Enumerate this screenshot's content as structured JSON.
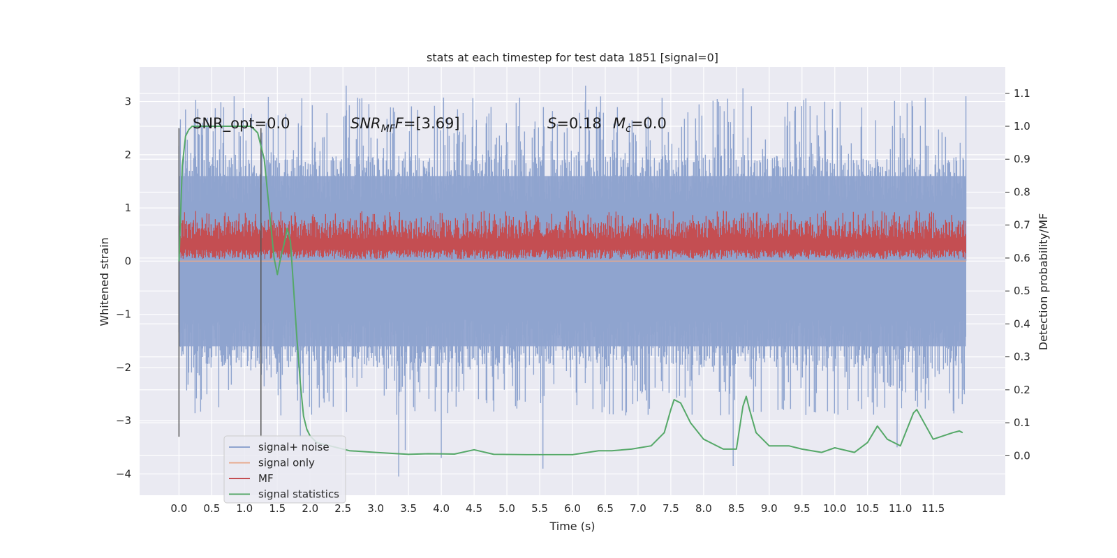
{
  "chart_data": {
    "type": "line",
    "title": "stats at each timestep for test data 1851 [signal=0]",
    "xlabel": "Time (s)",
    "ylabel": "Whitened strain",
    "y2label": "Detection probability/MF",
    "xlim": [
      -0.6,
      12.6
    ],
    "ylim": [
      -4.4,
      3.65
    ],
    "y2lim": [
      -0.12,
      1.18
    ],
    "x_ticks": [
      "0.0",
      "0.5",
      "1.0",
      "1.5",
      "2.0",
      "2.5",
      "3.0",
      "3.5",
      "4.0",
      "4.5",
      "5.0",
      "5.5",
      "6.0",
      "6.5",
      "7.0",
      "7.5",
      "8.0",
      "8.5",
      "9.0",
      "9.5",
      "10.0",
      "10.5",
      "11.0",
      "11.5"
    ],
    "y_ticks": [
      "3",
      "2",
      "1",
      "0",
      "−1",
      "−2",
      "−3",
      "−4"
    ],
    "y2_ticks": [
      "1.1",
      "1.0",
      "0.9",
      "0.8",
      "0.7",
      "0.6",
      "0.5",
      "0.4",
      "0.3",
      "0.2",
      "0.1",
      "0.0"
    ],
    "grid": true,
    "legend_position": "lower-left",
    "legend": [
      {
        "label": "signal+ noise",
        "color": "#8fa4cf"
      },
      {
        "label": "signal only",
        "color": "#e8a98d"
      },
      {
        "label": "MF",
        "color": "#c44e52"
      },
      {
        "label": "signal statistics",
        "color": "#55a868"
      }
    ],
    "annotations": {
      "snr_opt": "SNR_opt=0.0",
      "snr_mf_sym": "SNR",
      "snr_mf_sub": "MF",
      "snr_mf_value": "=[3.69]",
      "s_sym": "S",
      "s_value": "=0.18",
      "mc_sym": "M",
      "mc_sub": "c",
      "mc_value": "=0.0"
    },
    "vertical_lines_x": [
      0.0,
      1.25
    ],
    "signal_noise": {
      "x_range": [
        0.0,
        12.0
      ],
      "band": [
        -1.6,
        1.6
      ],
      "peak_range": [
        -4.05,
        3.3
      ]
    },
    "signal_only": {
      "x_range": [
        0.0,
        12.0
      ],
      "value": 0.0
    },
    "mf": {
      "x_range": [
        0.0,
        12.0
      ],
      "band": [
        0.02,
        0.95
      ]
    },
    "signal_statistics": {
      "axis": "right",
      "x": [
        0.0,
        0.05,
        0.1,
        0.15,
        0.2,
        0.3,
        0.5,
        0.8,
        1.0,
        1.1,
        1.2,
        1.3,
        1.4,
        1.45,
        1.5,
        1.55,
        1.6,
        1.65,
        1.7,
        1.75,
        1.8,
        1.85,
        1.9,
        1.95,
        2.0,
        2.1,
        2.2,
        2.4,
        2.6,
        3.0,
        3.5,
        3.8,
        4.2,
        4.5,
        4.8,
        5.3,
        6.0,
        6.4,
        6.6,
        6.9,
        7.2,
        7.4,
        7.5,
        7.55,
        7.65,
        7.8,
        8.0,
        8.3,
        8.5,
        8.6,
        8.65,
        8.7,
        8.8,
        9.0,
        9.3,
        9.5,
        9.8,
        10.0,
        10.3,
        10.5,
        10.65,
        10.8,
        11.0,
        11.2,
        11.25,
        11.5,
        11.8,
        11.9,
        11.95
      ],
      "y": [
        0.59,
        0.88,
        0.97,
        0.99,
        1.0,
        1.0,
        1.0,
        1.0,
        1.0,
        1.0,
        0.98,
        0.9,
        0.7,
        0.6,
        0.55,
        0.6,
        0.64,
        0.69,
        0.65,
        0.5,
        0.35,
        0.22,
        0.12,
        0.08,
        0.06,
        0.04,
        0.035,
        0.025,
        0.015,
        0.01,
        0.004,
        0.006,
        0.005,
        0.018,
        0.004,
        0.003,
        0.003,
        0.015,
        0.015,
        0.02,
        0.03,
        0.07,
        0.14,
        0.17,
        0.16,
        0.1,
        0.05,
        0.02,
        0.02,
        0.15,
        0.18,
        0.14,
        0.07,
        0.03,
        0.03,
        0.02,
        0.01,
        0.024,
        0.01,
        0.04,
        0.09,
        0.05,
        0.03,
        0.13,
        0.14,
        0.05,
        0.07,
        0.075,
        0.07
      ]
    }
  }
}
